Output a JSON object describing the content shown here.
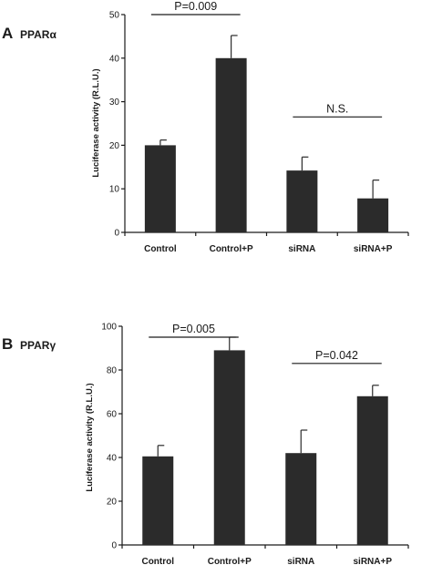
{
  "panels": [
    {
      "letter": "A",
      "name": "PPARα",
      "ylabel": "Luciferase activity (R.L.U.)",
      "chart_data": {
        "type": "bar",
        "categories": [
          "Control",
          "Control+P",
          "siRNA",
          "siRNA+P"
        ],
        "values": [
          20,
          40,
          14.2,
          7.8
        ],
        "errors": [
          1.2,
          5.2,
          3.1,
          4.2
        ],
        "ylim": [
          0,
          50
        ],
        "yticks": [
          0,
          10,
          20,
          30,
          40,
          50
        ],
        "ylabel": "Luciferase activity (R.L.U.)",
        "grid": false,
        "annotations": [
          {
            "text": "P=0.009",
            "from": 0,
            "to": 1,
            "y": 50
          },
          {
            "text": "N.S.",
            "from": 2,
            "to": 3,
            "y": 26.5
          }
        ]
      }
    },
    {
      "letter": "B",
      "name": "PPARγ",
      "ylabel": "Luciferase activity (R.L.U.)",
      "chart_data": {
        "type": "bar",
        "categories": [
          "Control",
          "Control+P",
          "siRNA",
          "siRNA+P"
        ],
        "values": [
          40.5,
          89,
          42,
          68
        ],
        "errors": [
          5,
          6,
          10.5,
          5
        ],
        "ylim": [
          0,
          100
        ],
        "yticks": [
          0,
          20,
          40,
          60,
          80,
          100
        ],
        "ylabel": "Luciferase activity (R.L.U.)",
        "grid": false,
        "annotations": [
          {
            "text": "P=0.005",
            "from": 0,
            "to": 1,
            "y": 95
          },
          {
            "text": "P=0.042",
            "from": 2,
            "to": 3,
            "y": 83
          }
        ]
      }
    }
  ]
}
